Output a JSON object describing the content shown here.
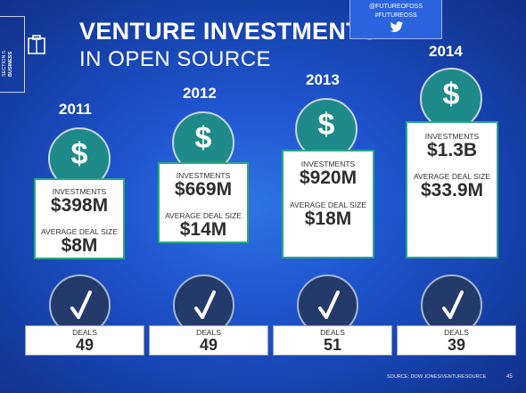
{
  "section": {
    "line1": "SECTION 5",
    "line2": "BUSINESS"
  },
  "title": {
    "line1": "VENTURE INVESTMENTS",
    "line2": "IN OPEN SOURCE"
  },
  "social": {
    "handle": "@FUTUREOFOSS",
    "hashtag": "#FUTUREOSS"
  },
  "labels": {
    "investments": "INVESTMENTS",
    "avg_deal": "AVERAGE DEAL SIZE",
    "deals": "DEALS"
  },
  "chart_data": {
    "type": "table",
    "title": "VENTURE INVESTMENTS IN OPEN SOURCE",
    "categories": [
      "2011",
      "2012",
      "2013",
      "2014"
    ],
    "series": [
      {
        "name": "INVESTMENTS",
        "values": [
          "$398M",
          "$669M",
          "$920M",
          "$1.3B"
        ],
        "numeric_musd": [
          398,
          669,
          920,
          1300
        ]
      },
      {
        "name": "AVERAGE DEAL SIZE",
        "values": [
          "$8M",
          "$14M",
          "$18M",
          "$33.9M"
        ],
        "numeric_musd": [
          8,
          14,
          18,
          33.9
        ]
      },
      {
        "name": "DEALS",
        "values": [
          "49",
          "49",
          "51",
          "39"
        ]
      }
    ]
  },
  "source": "SOURCE: DOW JONES/VENTURESOURCE",
  "page_number": "45",
  "colors": {
    "coin": "#1e8a8a",
    "card_border": "#2ba886",
    "check_circle": "#243a6b",
    "background": "#1f55cf"
  }
}
